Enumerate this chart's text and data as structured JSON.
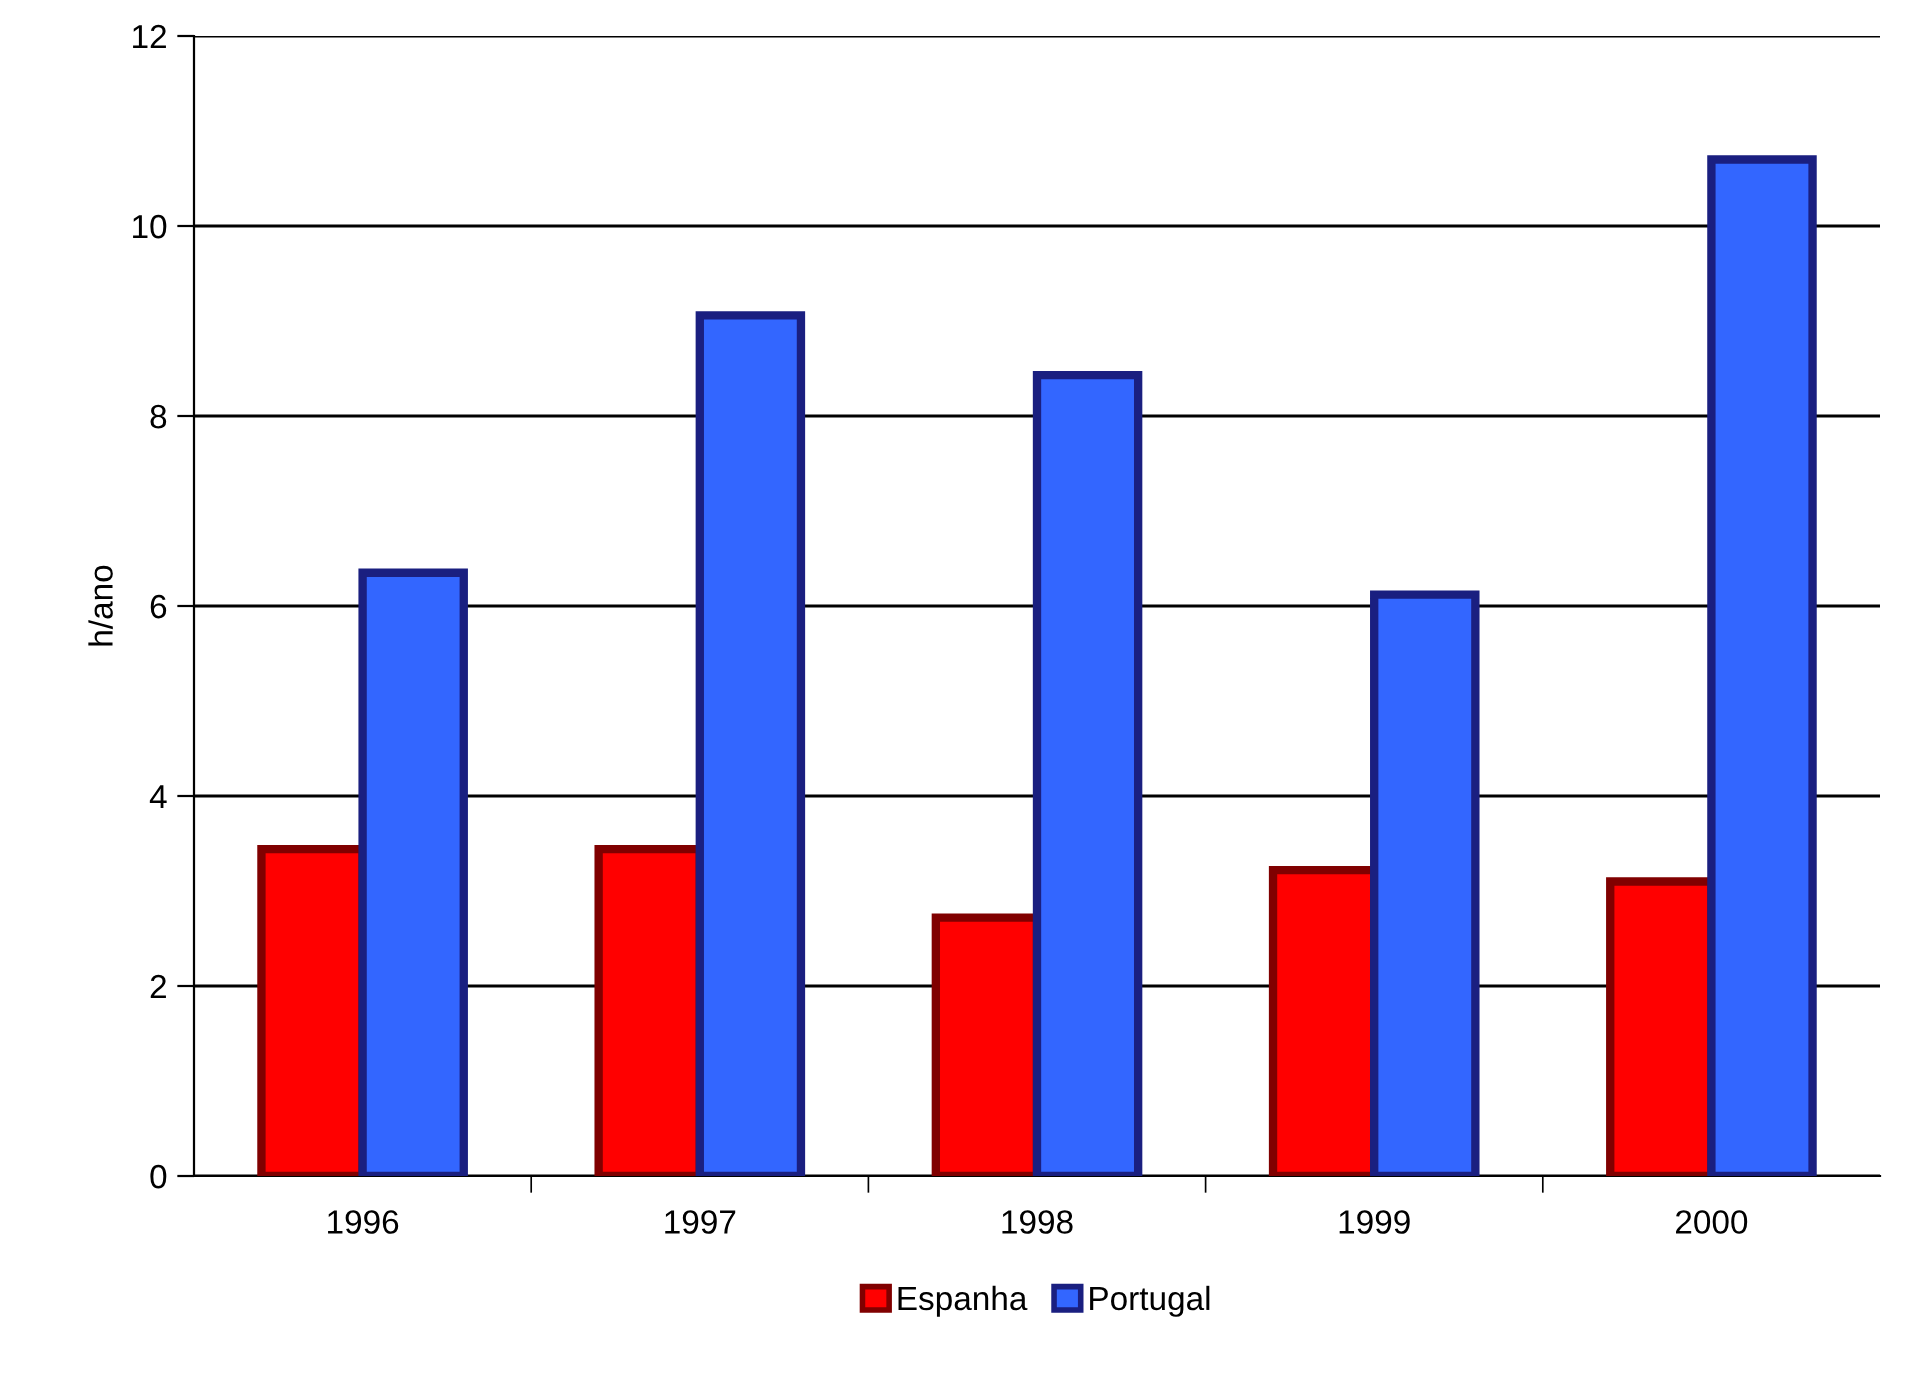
{
  "chart_data": {
    "type": "bar",
    "ylabel": "h/ano",
    "categories": [
      "1996",
      "1997",
      "1998",
      "1999",
      "2000"
    ],
    "series": [
      {
        "name": "Espanha",
        "color": "#ff0000",
        "values": [
          3.44,
          3.44,
          2.72,
          3.22,
          3.1
        ]
      },
      {
        "name": "Portugal",
        "color": "#3366ff",
        "values": [
          6.35,
          9.06,
          8.43,
          6.12,
          10.7
        ]
      }
    ],
    "ylim": [
      0,
      12
    ],
    "yticks": [
      0,
      2,
      4,
      6,
      8,
      10,
      12
    ],
    "grid": "y",
    "legend": "bottom"
  }
}
